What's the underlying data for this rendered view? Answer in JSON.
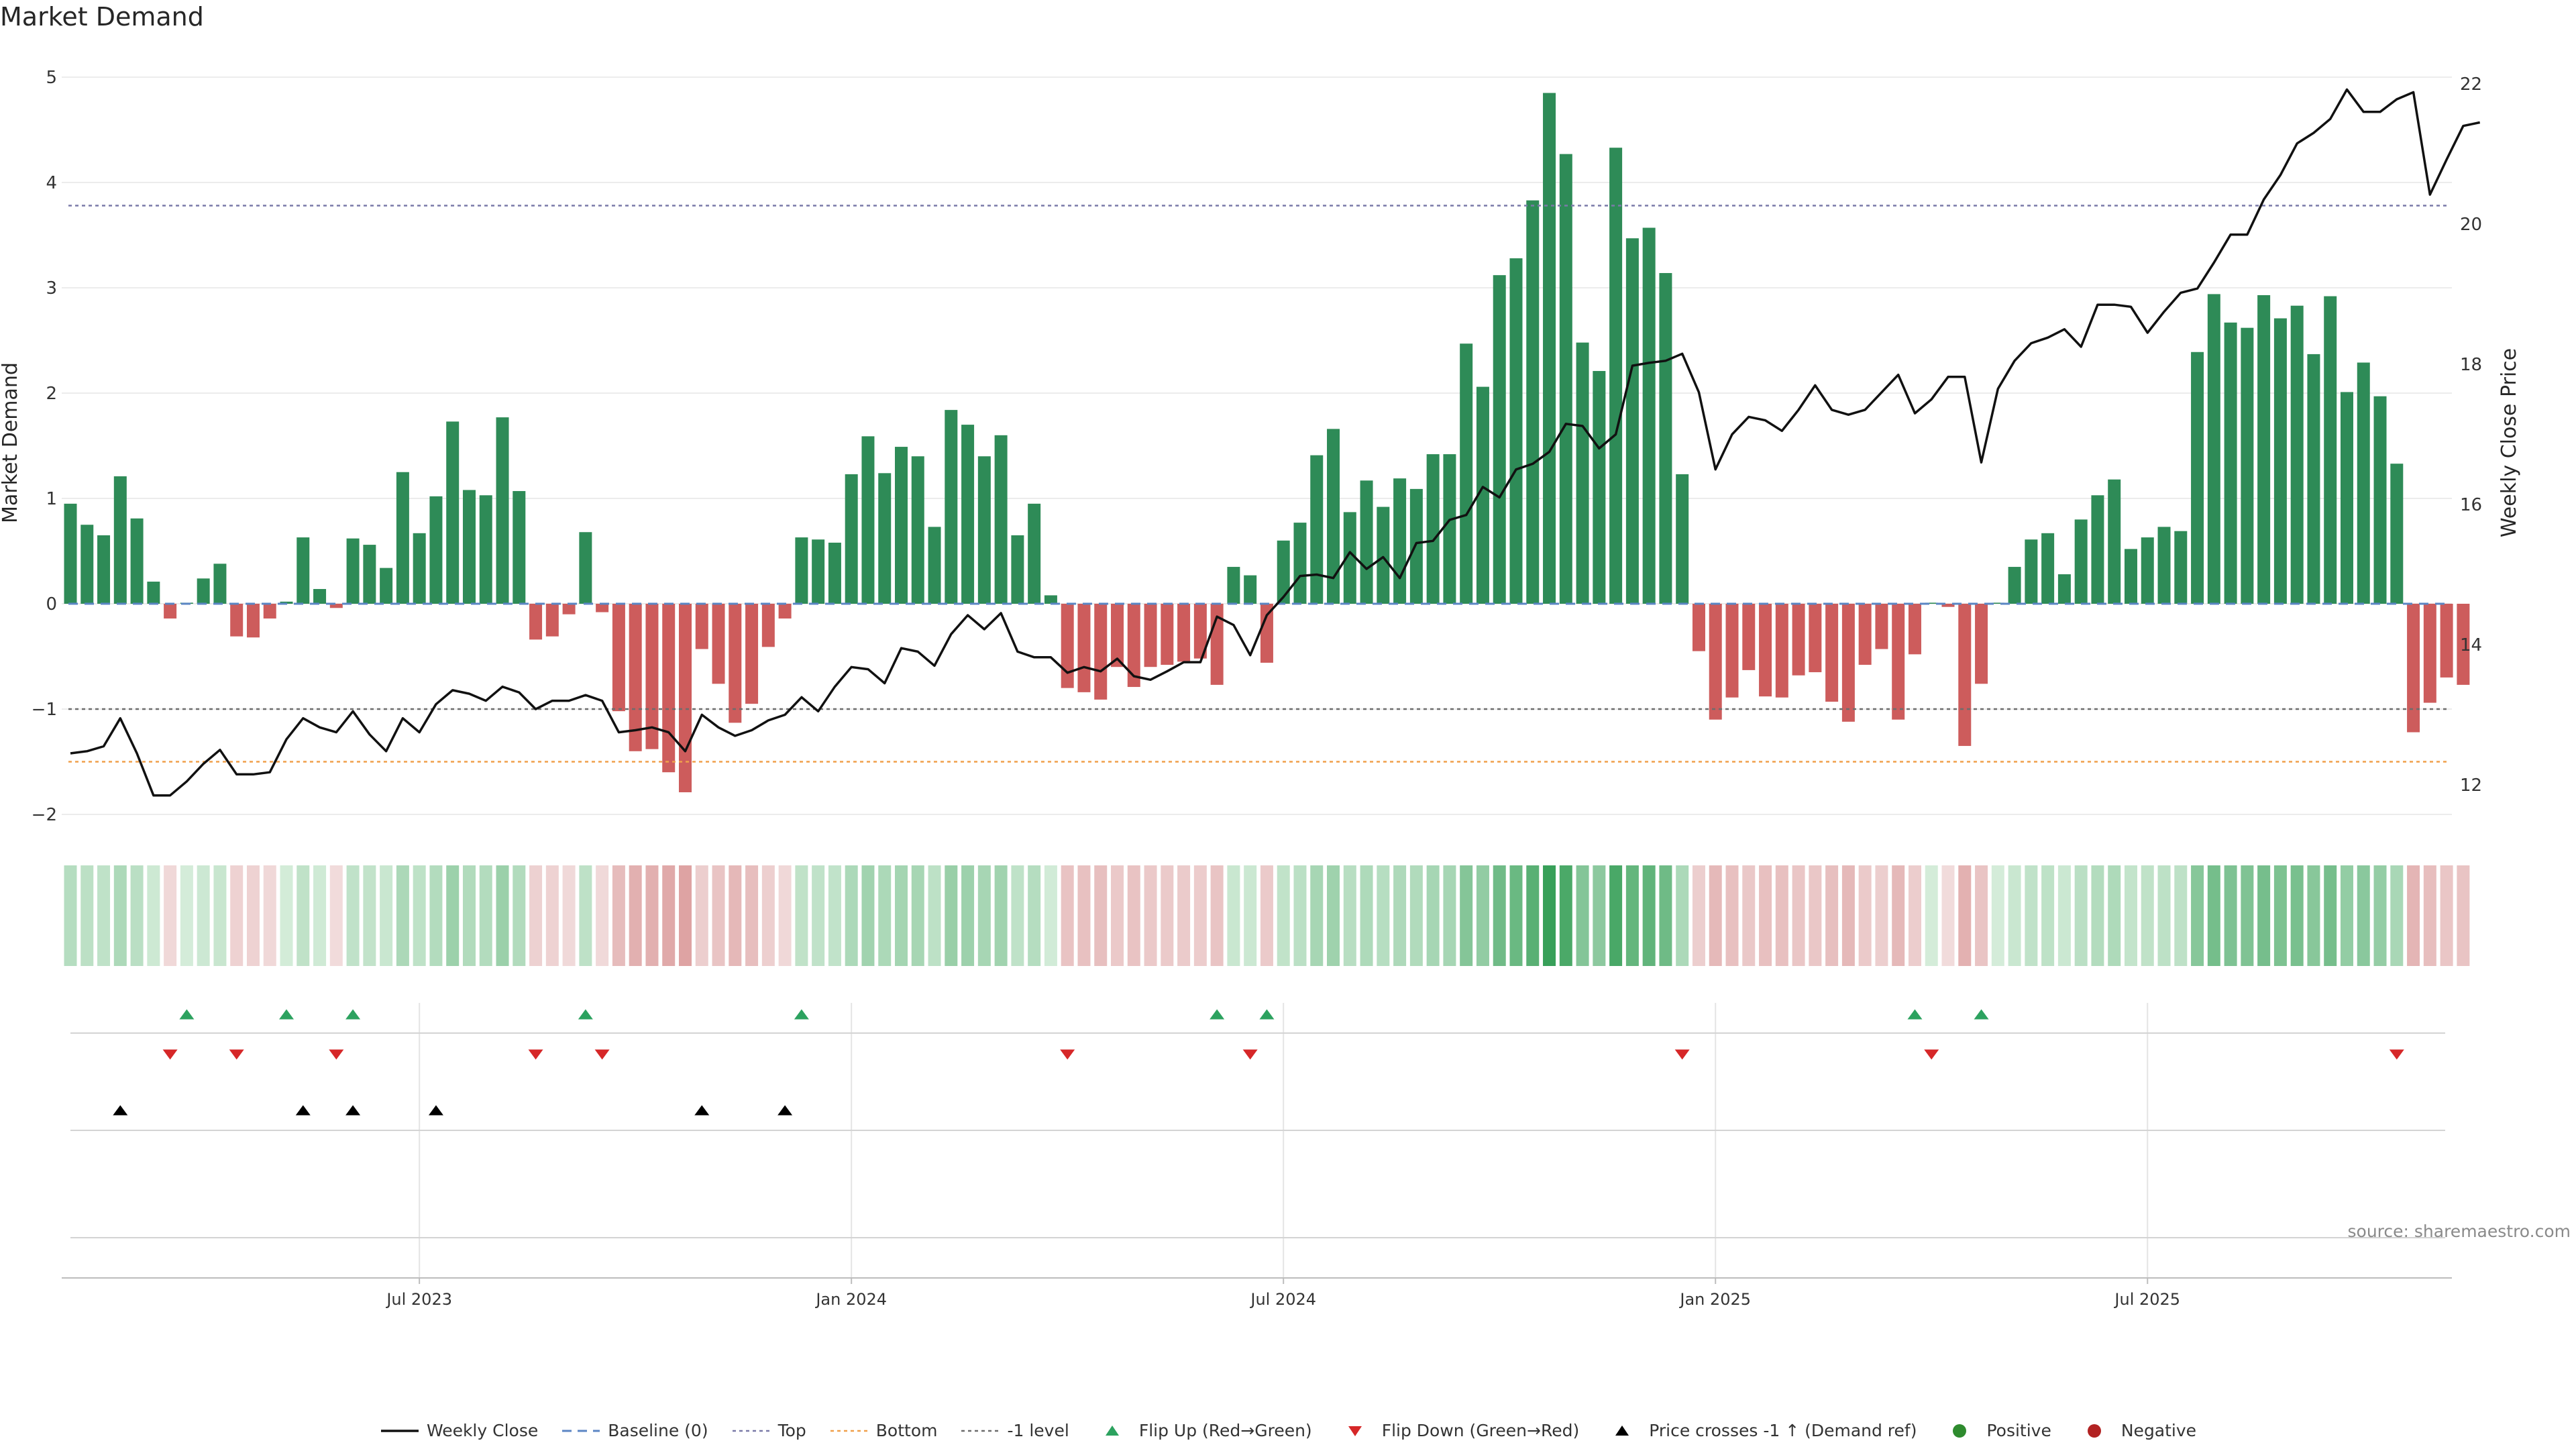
{
  "title": "Market Demand",
  "source": "source: sharemaestro.com",
  "colors": {
    "positive": "#2e8b57",
    "negative": "#cd5c5c",
    "price": "#111111",
    "baseline": "#5b86c4",
    "top": "#7a7aa8",
    "bottom": "#f0a04b",
    "minus1": "#6d6d6d",
    "flip_up": "#2ca25f",
    "flip_down": "#d62728",
    "cross": "#000000",
    "pos_dot": "#2e8b2e",
    "neg_dot": "#b22222"
  },
  "chart_data": {
    "type": "bar",
    "title": "Market Demand",
    "ylabel": "Market Demand",
    "y2label": "Weekly Close Price",
    "ylim": [
      -2.2,
      5.15
    ],
    "y2lim": [
      11.65,
      22.2
    ],
    "yticks": [
      -2,
      -1,
      0,
      1,
      2,
      3,
      4,
      5
    ],
    "y2ticks": [
      12,
      14,
      16,
      18,
      20,
      22
    ],
    "ytick_labels": [
      "−2",
      "−1",
      "0",
      "1",
      "2",
      "3",
      "4",
      "5"
    ],
    "y2tick_labels": [
      "12",
      "14",
      "16",
      "18",
      "20",
      "22"
    ],
    "levels": {
      "baseline": 0,
      "top": 3.78,
      "bottom": -1.5,
      "minus1": -1
    },
    "x_ticks": [
      {
        "label": "Jul 2023",
        "index": 21
      },
      {
        "label": "Jan 2024",
        "index": 47
      },
      {
        "label": "Jul 2024",
        "index": 73
      },
      {
        "label": "Jan 2025",
        "index": 99
      },
      {
        "label": "Jul 2025",
        "index": 125
      }
    ],
    "demand": [
      0.95,
      0.75,
      0.65,
      1.21,
      0.81,
      0.21,
      -0.14,
      0.01,
      0.24,
      0.38,
      -0.31,
      -0.32,
      -0.14,
      0.02,
      0.63,
      0.14,
      -0.04,
      0.62,
      0.56,
      0.34,
      1.25,
      0.67,
      1.02,
      1.73,
      1.08,
      1.03,
      1.77,
      1.07,
      -0.34,
      -0.31,
      -0.1,
      0.68,
      -0.08,
      -1.02,
      -1.4,
      -1.38,
      -1.6,
      -1.79,
      -0.43,
      -0.76,
      -1.13,
      -0.95,
      -0.41,
      -0.14,
      0.63,
      0.61,
      0.58,
      1.23,
      1.59,
      1.24,
      1.49,
      1.4,
      0.73,
      1.84,
      1.7,
      1.4,
      1.6,
      0.65,
      0.95,
      0.08,
      -0.8,
      -0.84,
      -0.91,
      -0.6,
      -0.79,
      -0.6,
      -0.58,
      -0.55,
      -0.52,
      -0.77,
      0.35,
      0.27,
      -0.56,
      0.6,
      0.77,
      1.41,
      1.66,
      0.87,
      1.17,
      0.92,
      1.19,
      1.09,
      1.42,
      1.42,
      2.47,
      2.06,
      3.12,
      3.28,
      3.83,
      4.85,
      4.27,
      2.48,
      2.21,
      4.33,
      3.47,
      3.57,
      3.14,
      1.23,
      -0.45,
      -1.1,
      -0.89,
      -0.63,
      -0.88,
      -0.89,
      -0.68,
      -0.65,
      -0.93,
      -1.12,
      -0.58,
      -0.43,
      -1.1,
      -0.48,
      0.01,
      -0.03,
      -1.35,
      -0.76,
      0.01,
      0.35,
      0.61,
      0.67,
      0.28,
      0.8,
      1.03,
      1.18,
      0.52,
      0.63,
      0.73,
      0.69,
      2.39,
      2.94,
      2.67,
      2.62,
      2.93,
      2.71,
      2.83,
      2.37,
      2.92,
      2.01,
      2.29,
      1.97,
      1.33,
      -1.22,
      -0.94,
      -0.7,
      -0.77
    ],
    "price": [
      12.45,
      12.48,
      12.55,
      12.95,
      12.45,
      11.85,
      11.85,
      12.05,
      12.3,
      12.5,
      12.15,
      12.15,
      12.18,
      12.65,
      12.95,
      12.82,
      12.75,
      13.05,
      12.72,
      12.48,
      12.95,
      12.75,
      13.15,
      13.35,
      13.3,
      13.2,
      13.4,
      13.32,
      13.08,
      13.2,
      13.2,
      13.28,
      13.2,
      12.75,
      12.78,
      12.82,
      12.75,
      12.48,
      13.0,
      12.82,
      12.7,
      12.78,
      12.92,
      13.0,
      13.25,
      13.05,
      13.4,
      13.68,
      13.65,
      13.45,
      13.95,
      13.9,
      13.7,
      14.15,
      14.42,
      14.22,
      14.45,
      13.9,
      13.82,
      13.82,
      13.6,
      13.68,
      13.62,
      13.8,
      13.55,
      13.5,
      13.62,
      13.75,
      13.75,
      14.4,
      14.28,
      13.85,
      14.42,
      14.68,
      14.98,
      15.0,
      14.95,
      15.32,
      15.08,
      15.25,
      14.95,
      15.45,
      15.48,
      15.78,
      15.85,
      16.25,
      16.1,
      16.5,
      16.58,
      16.75,
      17.15,
      17.12,
      16.8,
      17.0,
      17.98,
      18.02,
      18.05,
      18.15,
      17.6,
      16.5,
      17.0,
      17.25,
      17.2,
      17.05,
      17.35,
      17.7,
      17.35,
      17.28,
      17.35,
      17.6,
      17.85,
      17.3,
      17.5,
      17.82,
      17.82,
      16.6,
      17.65,
      18.05,
      18.3,
      18.38,
      18.5,
      18.25,
      18.85,
      18.85,
      18.82,
      18.45,
      18.75,
      19.02,
      19.08,
      19.45,
      19.85,
      19.85,
      20.35,
      20.7,
      21.15,
      21.3,
      21.5,
      21.92,
      21.6,
      21.6,
      21.78,
      21.88,
      20.42,
      20.92,
      21.4,
      21.45
    ],
    "flip_up": [
      7,
      13,
      17,
      31,
      44,
      69,
      72,
      111,
      115
    ],
    "flip_down": [
      6,
      10,
      16,
      28,
      32,
      60,
      71,
      97,
      112,
      140
    ],
    "price_cross_up": [
      3,
      14,
      17,
      22,
      38,
      43
    ],
    "x_axis_labels": [
      "Jul 2023",
      "Jan 2024",
      "Jul 2024",
      "Jan 2025",
      "Jul 2025"
    ]
  },
  "legend": [
    {
      "key": "weekly_close",
      "label": "Weekly Close"
    },
    {
      "key": "baseline",
      "label": "Baseline (0)"
    },
    {
      "key": "top",
      "label": "Top"
    },
    {
      "key": "bottom",
      "label": "Bottom"
    },
    {
      "key": "minus1",
      "label": "-1 level"
    },
    {
      "key": "flip_up",
      "label": "Flip Up (Red→Green)"
    },
    {
      "key": "flip_down",
      "label": "Flip Down (Green→Red)"
    },
    {
      "key": "cross",
      "label": "Price crosses -1 ↑ (Demand ref)"
    },
    {
      "key": "positive",
      "label": "Positive"
    },
    {
      "key": "negative",
      "label": "Negative"
    }
  ]
}
